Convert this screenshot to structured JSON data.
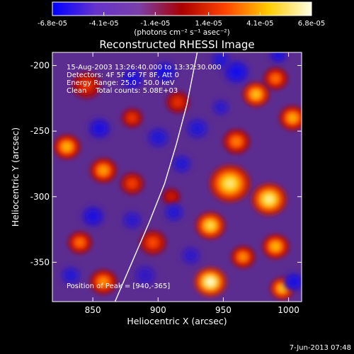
{
  "chart_data": {
    "type": "heatmap",
    "title": "Reconstructed RHESSI Image",
    "xlabel": "Heliocentric X (arcsec)",
    "ylabel": "Heliocentric Y (arcsec)",
    "xlim": [
      819,
      1010
    ],
    "ylim": [
      -380,
      -190
    ],
    "xticks": [
      850,
      900,
      950,
      1000
    ],
    "xtick_labels": [
      "850",
      "900",
      "950",
      "1000"
    ],
    "yticks": [
      -200,
      -250,
      -300,
      -350
    ],
    "ytick_labels": [
      "-200",
      "-250",
      "-300",
      "-350"
    ],
    "colorbar": {
      "range": [
        -6.8e-05,
        6.8e-05
      ],
      "tick_values": [
        -6.8e-05,
        -4.1e-05,
        -1.4e-05,
        1.4e-05,
        4.1e-05,
        6.8e-05
      ],
      "tick_labels": [
        "-6.8e-05",
        "-4.1e-05",
        "-1.4e-05",
        "1.4e-05",
        "4.1e-05",
        "6.8e-05"
      ],
      "units_label": "(photons cm⁻² s⁻¹ asec⁻²)",
      "colormap": [
        "#0000ff",
        "#6633cc",
        "#7a3fa8",
        "#aa0000",
        "#ff4400",
        "#ffcc00",
        "#ffffe8"
      ]
    },
    "annotations": [
      "15-Aug-2003 13:26:40.000 to 13:32:30.000",
      "Detectors: 4F 5F 6F 7F 8F, Att 0",
      "Energy Range: 25.0 - 50.0 keV",
      "Clean    Total counts: 5.08E+03"
    ],
    "peak_label": "Position of Peak = [940,-365]",
    "timestamp": "7-Jun-2013 07:48",
    "limb_curve": [
      [
        867,
        -380
      ],
      [
        880,
        -350
      ],
      [
        893,
        -320
      ],
      [
        905,
        -290
      ],
      [
        914,
        -260
      ],
      [
        922,
        -230
      ],
      [
        928,
        -200
      ],
      [
        931,
        -185
      ]
    ],
    "blobs": [
      {
        "x": 845,
        "y": -215,
        "v": 0.55,
        "r": 10
      },
      {
        "x": 830,
        "y": -262,
        "v": 0.82,
        "r": 9
      },
      {
        "x": 858,
        "y": -280,
        "v": 0.78,
        "r": 9
      },
      {
        "x": 880,
        "y": -290,
        "v": 0.6,
        "r": 8
      },
      {
        "x": 896,
        "y": -335,
        "v": 0.62,
        "r": 9
      },
      {
        "x": 840,
        "y": -335,
        "v": 0.7,
        "r": 8
      },
      {
        "x": 858,
        "y": -365,
        "v": 0.75,
        "r": 9
      },
      {
        "x": 880,
        "y": -240,
        "v": 0.58,
        "r": 7
      },
      {
        "x": 915,
        "y": -228,
        "v": 0.55,
        "r": 8
      },
      {
        "x": 960,
        "y": -258,
        "v": 0.72,
        "r": 9
      },
      {
        "x": 975,
        "y": -222,
        "v": 0.85,
        "r": 9
      },
      {
        "x": 990,
        "y": -210,
        "v": 0.7,
        "r": 8
      },
      {
        "x": 1003,
        "y": -240,
        "v": 0.8,
        "r": 9
      },
      {
        "x": 955,
        "y": -290,
        "v": 0.92,
        "r": 14
      },
      {
        "x": 985,
        "y": -302,
        "v": 0.95,
        "r": 12
      },
      {
        "x": 940,
        "y": -322,
        "v": 0.9,
        "r": 10
      },
      {
        "x": 990,
        "y": -338,
        "v": 0.82,
        "r": 9
      },
      {
        "x": 965,
        "y": -346,
        "v": 0.75,
        "r": 8
      },
      {
        "x": 940,
        "y": -365,
        "v": 1.0,
        "r": 11
      },
      {
        "x": 995,
        "y": -370,
        "v": 0.85,
        "r": 8
      },
      {
        "x": 910,
        "y": -300,
        "v": 0.5,
        "r": 6
      },
      {
        "x": 880,
        "y": -210,
        "v": -0.7,
        "r": 8
      },
      {
        "x": 905,
        "y": -205,
        "v": -0.75,
        "r": 8
      },
      {
        "x": 855,
        "y": -248,
        "v": -0.7,
        "r": 8
      },
      {
        "x": 900,
        "y": -255,
        "v": -0.6,
        "r": 8
      },
      {
        "x": 918,
        "y": -275,
        "v": -0.6,
        "r": 7
      },
      {
        "x": 850,
        "y": -315,
        "v": -0.7,
        "r": 8
      },
      {
        "x": 880,
        "y": -318,
        "v": -0.55,
        "r": 7
      },
      {
        "x": 912,
        "y": -312,
        "v": -0.6,
        "r": 7
      },
      {
        "x": 930,
        "y": -248,
        "v": -0.6,
        "r": 8
      },
      {
        "x": 948,
        "y": -232,
        "v": -0.55,
        "r": 6
      },
      {
        "x": 960,
        "y": -205,
        "v": -0.8,
        "r": 9
      },
      {
        "x": 948,
        "y": -196,
        "v": -0.6,
        "r": 7
      },
      {
        "x": 992,
        "y": -192,
        "v": -0.7,
        "r": 6
      },
      {
        "x": 833,
        "y": -360,
        "v": -0.6,
        "r": 7
      },
      {
        "x": 1004,
        "y": -365,
        "v": -0.75,
        "r": 7
      },
      {
        "x": 925,
        "y": -345,
        "v": -0.5,
        "r": 7
      },
      {
        "x": 890,
        "y": -360,
        "v": -0.45,
        "r": 8
      }
    ]
  }
}
